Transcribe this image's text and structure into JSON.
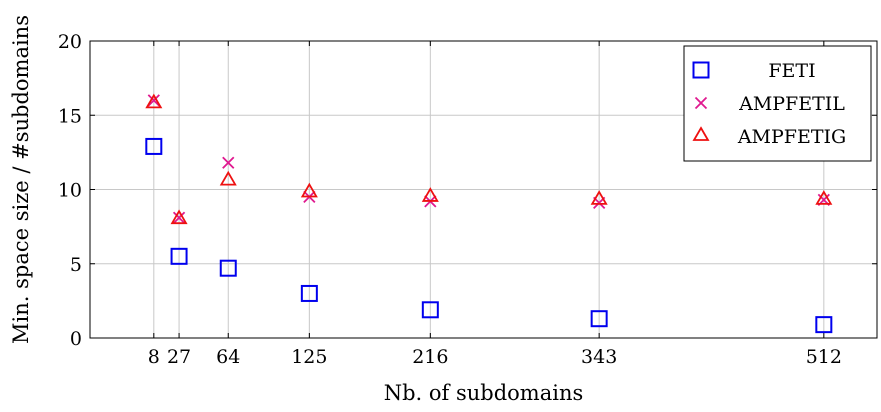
{
  "chart_data": {
    "type": "scatter",
    "title": "",
    "xlabel": "Nb. of subdomains",
    "ylabel": "Min. space size / #subdomains",
    "x": [
      8,
      27,
      64,
      125,
      216,
      343,
      512
    ],
    "xticks": [
      "8",
      "27",
      "64",
      "125",
      "216",
      "343",
      "512"
    ],
    "yticks": [
      0,
      5,
      10,
      15,
      20
    ],
    "xlim": [
      -40,
      552
    ],
    "ylim": [
      0,
      20
    ],
    "grid": true,
    "legend_position": "top-right",
    "series": [
      {
        "name": "FETI",
        "marker": "square",
        "color": "#0000ee",
        "values": [
          12.9,
          5.5,
          4.7,
          3.0,
          1.9,
          1.3,
          0.9
        ]
      },
      {
        "name": "AMPFETIL",
        "marker": "cross",
        "color": "#e0198f",
        "values": [
          16.0,
          8.1,
          11.8,
          9.5,
          9.2,
          9.1,
          9.3
        ]
      },
      {
        "name": "AMPFETIG",
        "marker": "triangle",
        "color": "#ee1111",
        "values": [
          15.8,
          8.0,
          10.6,
          9.8,
          9.5,
          9.3,
          9.3
        ]
      }
    ]
  }
}
